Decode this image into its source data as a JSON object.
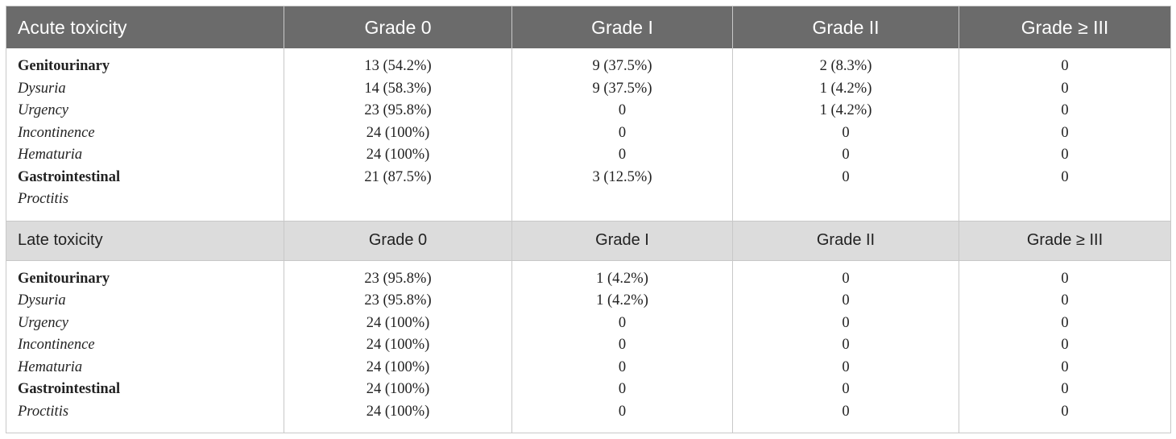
{
  "acute": {
    "title": "Acute toxicity",
    "headers": [
      "Grade 0",
      "Grade I",
      "Grade II",
      "Grade ≥ III"
    ],
    "rows": [
      {
        "label": "Genitourinary",
        "style": "bold",
        "cells": [
          "13 (54.2%)",
          "9 (37.5%)",
          "2 (8.3%)",
          "0"
        ]
      },
      {
        "label": "Dysuria",
        "style": "italic",
        "cells": [
          "14 (58.3%)",
          "9 (37.5%)",
          "1 (4.2%)",
          "0"
        ]
      },
      {
        "label": "Urgency",
        "style": "italic",
        "cells": [
          "23 (95.8%)",
          "0",
          "1 (4.2%)",
          "0"
        ]
      },
      {
        "label": "Incontinence",
        "style": "italic",
        "cells": [
          "24 (100%)",
          "0",
          "0",
          "0"
        ]
      },
      {
        "label": "Hematuria",
        "style": "italic",
        "cells": [
          "24 (100%)",
          "0",
          "0",
          "0"
        ]
      },
      {
        "label": "Gastrointestinal",
        "style": "bold",
        "cells": [
          "21 (87.5%)",
          "3 (12.5%)",
          "0",
          "0"
        ]
      },
      {
        "label": "Proctitis",
        "style": "italic",
        "cells": [
          "",
          "",
          "",
          ""
        ]
      }
    ]
  },
  "late": {
    "title": "Late toxicity",
    "headers": [
      "Grade 0",
      "Grade I",
      "Grade II",
      "Grade ≥ III"
    ],
    "rows": [
      {
        "label": "Genitourinary",
        "style": "bold",
        "cells": [
          "23 (95.8%)",
          "1 (4.2%)",
          "0",
          "0"
        ]
      },
      {
        "label": "Dysuria",
        "style": "italic",
        "cells": [
          "23 (95.8%)",
          "1 (4.2%)",
          "0",
          "0"
        ]
      },
      {
        "label": "Urgency",
        "style": "italic",
        "cells": [
          "24 (100%)",
          "0",
          "0",
          "0"
        ]
      },
      {
        "label": "Incontinence",
        "style": "italic",
        "cells": [
          "24 (100%)",
          "0",
          "0",
          "0"
        ]
      },
      {
        "label": "Hematuria",
        "style": "italic",
        "cells": [
          "24 (100%)",
          "0",
          "0",
          "0"
        ]
      },
      {
        "label": "Gastrointestinal",
        "style": "bold",
        "cells": [
          "24 (100%)",
          "0",
          "0",
          "0"
        ]
      },
      {
        "label": "Proctitis",
        "style": "italic",
        "cells": [
          "24 (100%)",
          "0",
          "0",
          "0"
        ]
      }
    ]
  },
  "colors": {
    "header_bg": "#6b6b6b",
    "subheader_bg": "#dcdcdc",
    "border": "#c8c8c8"
  }
}
